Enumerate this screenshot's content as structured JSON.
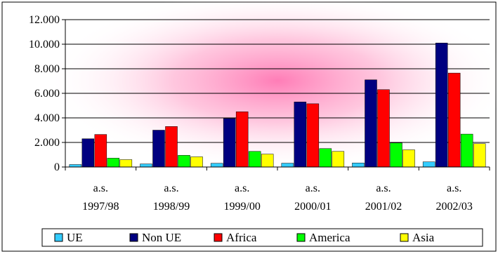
{
  "chart_data": {
    "type": "bar",
    "categories": [
      [
        "a.s.",
        "1997/98"
      ],
      [
        "a.s.",
        "1998/99"
      ],
      [
        "a.s.",
        "1999/00"
      ],
      [
        "a.s.",
        "2000/01"
      ],
      [
        "a.s.",
        "2001/02"
      ],
      [
        "a.s.",
        "2002/03"
      ]
    ],
    "series": [
      {
        "name": "UE",
        "color": "#33CCFF",
        "values": [
          200,
          250,
          300,
          310,
          330,
          420
        ]
      },
      {
        "name": "Non UE",
        "color": "#000080",
        "values": [
          2300,
          3000,
          3950,
          5300,
          7100,
          10100
        ]
      },
      {
        "name": "Africa",
        "color": "#FF0000",
        "values": [
          2650,
          3300,
          4500,
          5150,
          6300,
          7650
        ]
      },
      {
        "name": "America",
        "color": "#00FF00",
        "values": [
          720,
          950,
          1270,
          1500,
          1960,
          2680
        ]
      },
      {
        "name": "Asia",
        "color": "#FFFF00",
        "values": [
          600,
          830,
          1050,
          1270,
          1400,
          1900
        ]
      }
    ],
    "y_ticks": [
      "0",
      "2.000",
      "4.000",
      "6.000",
      "8.000",
      "10.000",
      "12.000"
    ],
    "ylim": [
      0,
      12000
    ],
    "grid": true,
    "legend_position": "bottom",
    "background_glow_color": "#FF66AA"
  }
}
